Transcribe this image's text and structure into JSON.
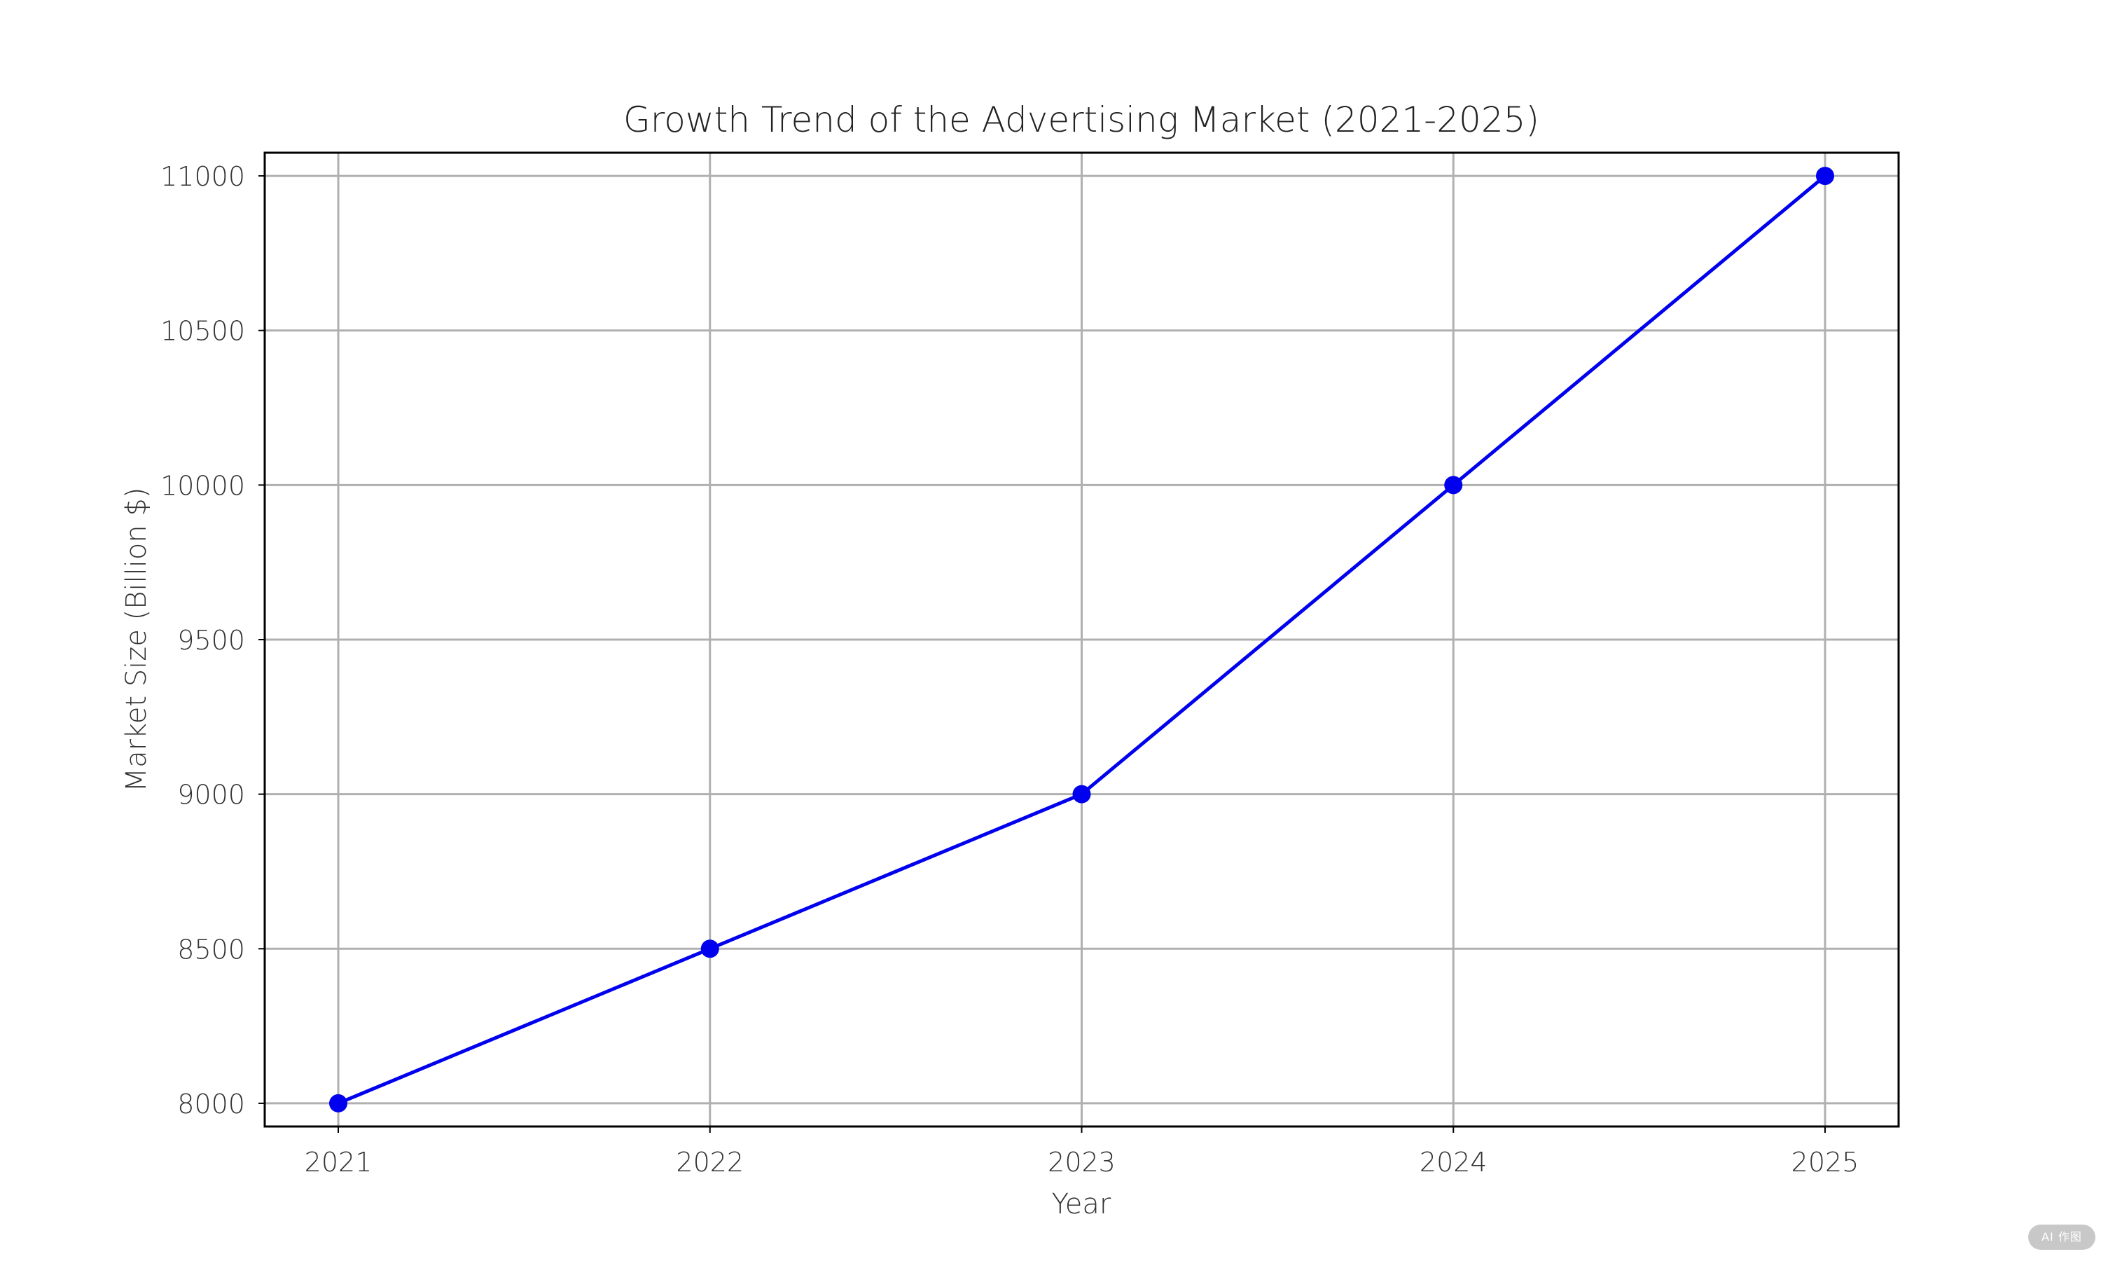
{
  "chart_data": {
    "type": "line",
    "title": "Growth Trend of the Advertising Market (2021-2025)",
    "xlabel": "Year",
    "ylabel": "Market Size (Billion $)",
    "categories": [
      "2021",
      "2022",
      "2023",
      "2024",
      "2025"
    ],
    "series": [
      {
        "values": [
          8000,
          8500,
          9000,
          10000,
          11000
        ],
        "color": "#0000ee"
      }
    ],
    "ylim": [
      7925,
      11075
    ],
    "yticks": [
      8000,
      8500,
      9000,
      9500,
      10000,
      10500,
      11000
    ],
    "grid": true,
    "marker": "circle"
  },
  "watermark": {
    "text": "AI 作图"
  }
}
